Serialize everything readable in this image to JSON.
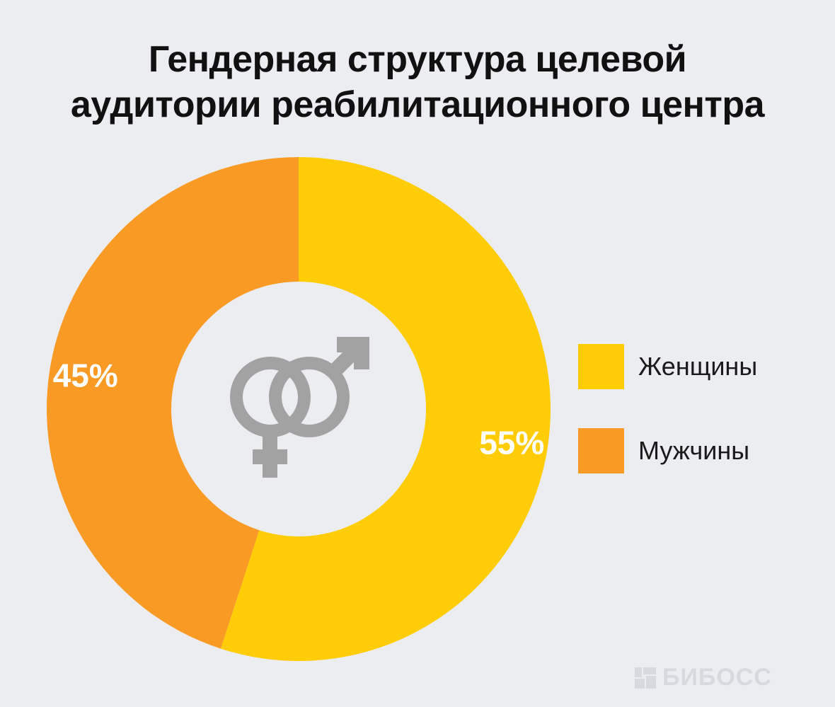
{
  "chart_data": {
    "type": "pie",
    "variant": "donut",
    "title": [
      "Гендерная структура целевой",
      "аудитории реабилитационного центра"
    ],
    "categories": [
      "Женщины",
      "Мужчины"
    ],
    "values": [
      55,
      45
    ],
    "value_labels": [
      "55%",
      "45%"
    ],
    "colors": [
      "#FFCC05",
      "#F99A24"
    ],
    "legend_placement": "right",
    "center_icon": "gender-symbols-icon",
    "center_icon_color": "#A2A2A2"
  },
  "watermark": {
    "text": "БИБОСС",
    "icon": "bibos-logo-icon"
  },
  "colors": {
    "background": "#ECEDF1",
    "donut_hole": "#ECEDF1",
    "label_text": "#FFFFFF"
  }
}
